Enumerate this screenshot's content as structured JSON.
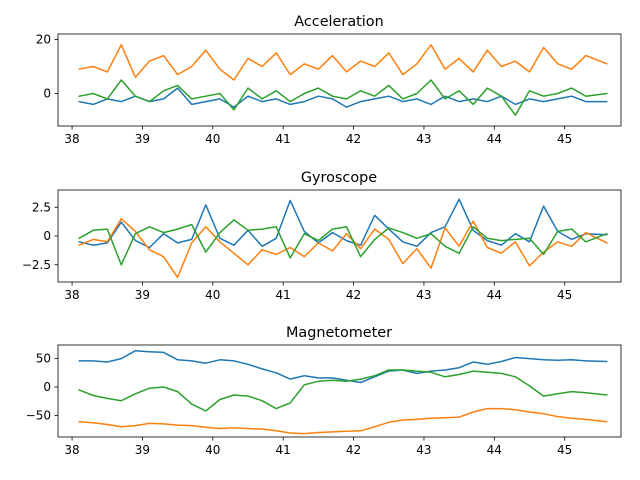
{
  "colors": {
    "blue": "#1f77b4",
    "orange": "#ff7f0e",
    "green": "#2ca02c"
  },
  "chart_data": [
    {
      "type": "line",
      "title": "Acceleration",
      "xlim": [
        37.8,
        45.8
      ],
      "ylim": [
        -12,
        22
      ],
      "x_ticks": [
        38,
        39,
        40,
        41,
        42,
        43,
        44,
        45
      ],
      "y_ticks": [
        0,
        20
      ],
      "x": [
        38.1,
        38.3,
        38.5,
        38.7,
        38.9,
        39.1,
        39.3,
        39.5,
        39.7,
        39.9,
        40.1,
        40.3,
        40.5,
        40.7,
        40.9,
        41.1,
        41.3,
        41.5,
        41.7,
        41.9,
        42.1,
        42.3,
        42.5,
        42.7,
        42.9,
        43.1,
        43.3,
        43.5,
        43.7,
        43.9,
        44.1,
        44.3,
        44.5,
        44.7,
        44.9,
        45.1,
        45.3,
        45.6
      ],
      "series": [
        {
          "color": "#1f77b4",
          "values": [
            -3,
            -4,
            -2,
            -3,
            -1,
            -3,
            -2,
            2,
            -4,
            -3,
            -2,
            -5,
            -1,
            -3,
            -2,
            -4,
            -3,
            -1,
            -2,
            -5,
            -3,
            -2,
            -1,
            -3,
            -2,
            -4,
            -1,
            -3,
            -2,
            -3,
            -1,
            -4,
            -2,
            -3,
            -2,
            -1,
            -3,
            -3
          ]
        },
        {
          "color": "#ff7f0e",
          "values": [
            9,
            10,
            8,
            18,
            6,
            12,
            14,
            7,
            10,
            16,
            9,
            5,
            13,
            10,
            15,
            7,
            11,
            9,
            14,
            8,
            12,
            10,
            15,
            7,
            11,
            18,
            9,
            13,
            8,
            16,
            10,
            12,
            8,
            17,
            11,
            9,
            14,
            11
          ]
        },
        {
          "color": "#2ca02c",
          "values": [
            -1,
            0,
            -2,
            5,
            -1,
            -3,
            1,
            3,
            -2,
            -1,
            0,
            -6,
            2,
            -2,
            1,
            -3,
            0,
            2,
            -1,
            -2,
            1,
            -1,
            3,
            -2,
            0,
            5,
            -2,
            1,
            -4,
            2,
            -1,
            -8,
            1,
            -1,
            0,
            2,
            -1,
            0
          ]
        }
      ]
    },
    {
      "type": "line",
      "title": "Gyroscope",
      "xlim": [
        37.8,
        45.8
      ],
      "ylim": [
        -4,
        4
      ],
      "x_ticks": [
        38,
        39,
        40,
        41,
        42,
        43,
        44,
        45
      ],
      "y_ticks": [
        -2.5,
        0.0,
        2.5
      ],
      "x": [
        38.1,
        38.3,
        38.5,
        38.7,
        38.9,
        39.1,
        39.3,
        39.5,
        39.7,
        39.9,
        40.1,
        40.3,
        40.5,
        40.7,
        40.9,
        41.1,
        41.3,
        41.5,
        41.7,
        41.9,
        42.1,
        42.3,
        42.5,
        42.7,
        42.9,
        43.1,
        43.3,
        43.5,
        43.7,
        43.9,
        44.1,
        44.3,
        44.5,
        44.7,
        44.9,
        45.1,
        45.3,
        45.6
      ],
      "series": [
        {
          "color": "#1f77b4",
          "values": [
            -0.5,
            -0.8,
            -0.6,
            1.2,
            -0.4,
            -1.0,
            0.2,
            -0.6,
            -0.3,
            2.7,
            -0.2,
            -0.8,
            0.5,
            -0.9,
            -0.2,
            3.1,
            0.4,
            -0.6,
            0.3,
            -0.4,
            -0.8,
            1.8,
            0.6,
            -0.5,
            -0.9,
            0.3,
            0.8,
            3.2,
            0.5,
            -0.4,
            -0.8,
            0.2,
            -0.5,
            2.6,
            0.4,
            -0.3,
            0.2,
            0.1
          ]
        },
        {
          "color": "#ff7f0e",
          "values": [
            -0.8,
            -0.3,
            -0.5,
            1.5,
            0.4,
            -1.2,
            -1.8,
            -3.6,
            -0.6,
            0.8,
            -0.5,
            -1.5,
            -2.5,
            -1.2,
            -1.6,
            -1.0,
            -1.8,
            -0.6,
            -1.3,
            0.2,
            -1.1,
            0.6,
            -0.3,
            -2.4,
            -1.1,
            -2.8,
            0.7,
            -0.9,
            1.3,
            -1.0,
            -1.5,
            -0.5,
            -2.6,
            -1.4,
            -0.5,
            -0.9,
            0.3,
            -0.6
          ]
        },
        {
          "color": "#2ca02c",
          "values": [
            -0.2,
            0.5,
            0.6,
            -2.5,
            0.2,
            0.8,
            0.3,
            0.6,
            1.0,
            -1.4,
            0.3,
            1.4,
            0.5,
            0.6,
            0.8,
            -1.9,
            0.2,
            -0.4,
            0.6,
            0.8,
            -1.8,
            -0.3,
            0.7,
            0.3,
            -0.2,
            0.2,
            -0.9,
            -1.5,
            0.8,
            -0.2,
            -0.4,
            -0.3,
            -0.2,
            -1.6,
            0.4,
            0.6,
            -0.5,
            0.2
          ]
        }
      ]
    },
    {
      "type": "line",
      "title": "Magnetometer",
      "xlim": [
        37.8,
        45.8
      ],
      "ylim": [
        -88,
        74
      ],
      "x_ticks": [
        38,
        39,
        40,
        41,
        42,
        43,
        44,
        45
      ],
      "y_ticks": [
        -50,
        0,
        50
      ],
      "x": [
        38.1,
        38.3,
        38.5,
        38.7,
        38.9,
        39.1,
        39.3,
        39.5,
        39.7,
        39.9,
        40.1,
        40.3,
        40.5,
        40.7,
        40.9,
        41.1,
        41.3,
        41.5,
        41.7,
        41.9,
        42.1,
        42.3,
        42.5,
        42.7,
        42.9,
        43.1,
        43.3,
        43.5,
        43.7,
        43.9,
        44.1,
        44.3,
        44.5,
        44.7,
        44.9,
        45.1,
        45.3,
        45.6
      ],
      "series": [
        {
          "color": "#1f77b4",
          "values": [
            46,
            46,
            44,
            50,
            64,
            62,
            61,
            48,
            46,
            42,
            48,
            46,
            40,
            32,
            25,
            14,
            20,
            16,
            16,
            12,
            8,
            18,
            28,
            30,
            24,
            28,
            30,
            34,
            44,
            40,
            45,
            52,
            50,
            48,
            47,
            48,
            46,
            45
          ]
        },
        {
          "color": "#ff7f0e",
          "values": [
            -61,
            -63,
            -66,
            -70,
            -68,
            -64,
            -65,
            -67,
            -68,
            -71,
            -73,
            -72,
            -73,
            -74,
            -77,
            -81,
            -82,
            -80,
            -79,
            -78,
            -77,
            -70,
            -62,
            -58,
            -57,
            -55,
            -54,
            -53,
            -44,
            -38,
            -38,
            -40,
            -44,
            -47,
            -52,
            -55,
            -57,
            -61
          ]
        },
        {
          "color": "#2ca02c",
          "values": [
            -5,
            -15,
            -20,
            -24,
            -12,
            -2,
            0,
            -8,
            -30,
            -42,
            -22,
            -14,
            -16,
            -24,
            -38,
            -28,
            4,
            10,
            12,
            10,
            14,
            20,
            30,
            30,
            28,
            26,
            18,
            22,
            28,
            26,
            24,
            18,
            2,
            -16,
            -12,
            -8,
            -10,
            -14
          ]
        }
      ]
    }
  ]
}
